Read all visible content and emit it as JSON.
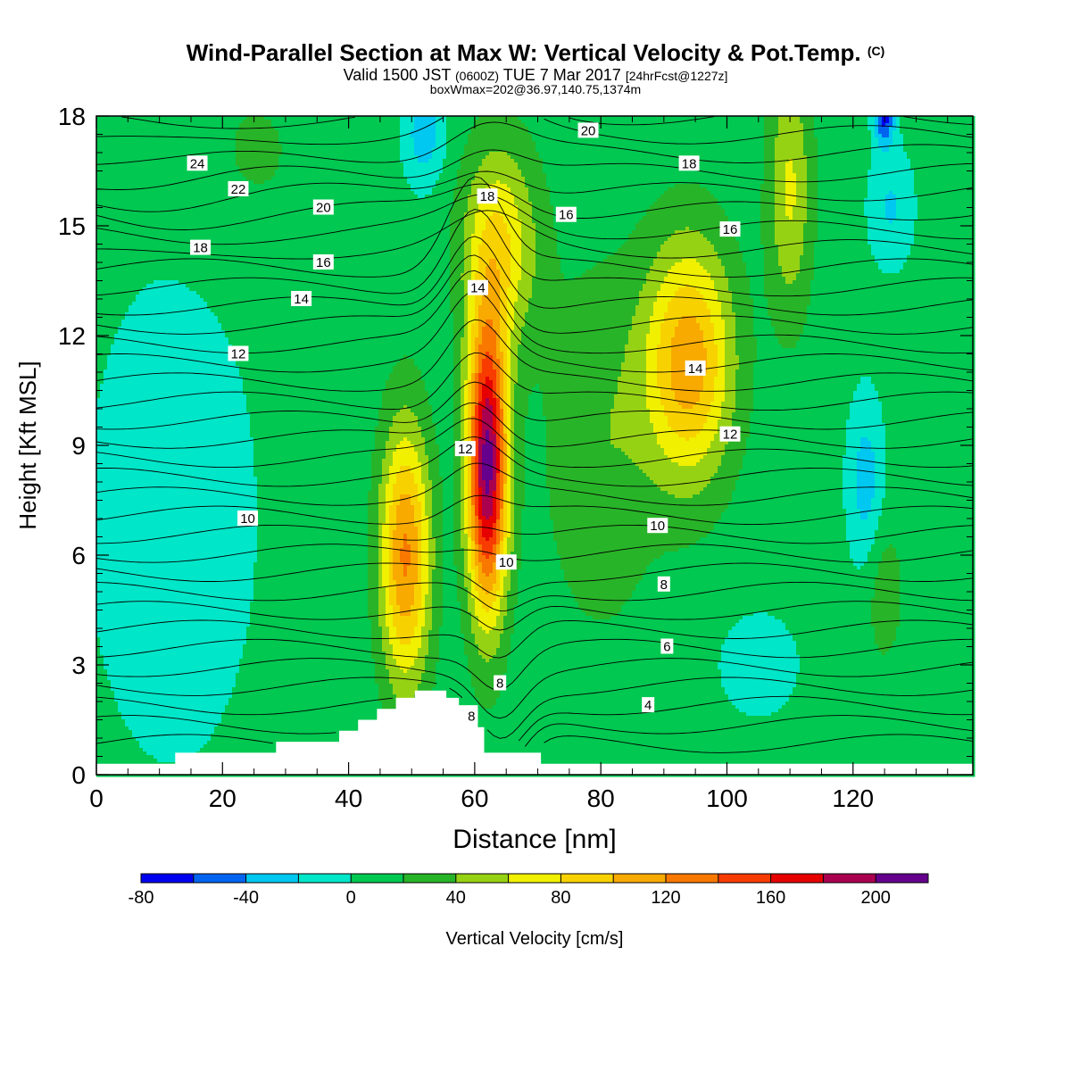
{
  "chart_data": {
    "type": "heatmap",
    "title_main": "Wind-Parallel Section at Max W: Vertical Velocity & Pot.Temp.",
    "title_mark": "(C)",
    "subtitle_a": "Valid 1500 JST",
    "subtitle_b": "(0600Z)",
    "subtitle_c": "TUE 7 Mar 2017",
    "subtitle_d": "[24hrFcst@1227z]",
    "box_line": "boxWmax=202@36.97,140.75,1374m",
    "xlabel": "Distance [nm]",
    "ylabel": "Height [Kft MSL]",
    "xlim": [
      0,
      139
    ],
    "ylim": [
      0,
      18
    ],
    "xticks": [
      0,
      20,
      40,
      60,
      80,
      100,
      120
    ],
    "yticks": [
      0,
      3,
      6,
      9,
      12,
      15,
      18
    ],
    "colorbar": {
      "label": "Vertical Velocity [cm/s]",
      "min": -80,
      "max": 220,
      "step": 20,
      "tick_values": [
        -80,
        -40,
        0,
        40,
        80,
        120,
        160,
        200
      ],
      "tick_labels": [
        "-80",
        "-40",
        "0",
        "40",
        "80",
        "120",
        "160",
        "200"
      ],
      "colors": [
        "#0000f0",
        "#0064f0",
        "#00c8f0",
        "#00e6c8",
        "#00c850",
        "#28b428",
        "#96d214",
        "#f0f000",
        "#f8d200",
        "#f8aa00",
        "#f87800",
        "#f83c00",
        "#e60000",
        "#aa0050",
        "#64008c"
      ]
    },
    "field_peaks": [
      {
        "x": 62,
        "y": 8.5,
        "w": 200
      },
      {
        "x": 48,
        "y": 6,
        "w": 110
      },
      {
        "x": 94,
        "y": 11,
        "w": 100
      },
      {
        "x": 122,
        "y": 8,
        "w": -30
      },
      {
        "x": 52,
        "y": 17,
        "w": -30
      },
      {
        "x": 125,
        "y": 17.5,
        "w": -60
      }
    ],
    "theta_labels": [
      {
        "text": "24",
        "x": 16,
        "y": 16.7
      },
      {
        "text": "22",
        "x": 22.5,
        "y": 16.0
      },
      {
        "text": "20",
        "x": 36,
        "y": 15.5
      },
      {
        "text": "20",
        "x": 78,
        "y": 17.6
      },
      {
        "text": "18",
        "x": 16.5,
        "y": 14.4
      },
      {
        "text": "18",
        "x": 62,
        "y": 15.8
      },
      {
        "text": "18",
        "x": 94,
        "y": 16.7
      },
      {
        "text": "16",
        "x": 36,
        "y": 14.0
      },
      {
        "text": "16",
        "x": 74.5,
        "y": 15.3
      },
      {
        "text": "16",
        "x": 100.5,
        "y": 14.9
      },
      {
        "text": "14",
        "x": 32.5,
        "y": 13.0
      },
      {
        "text": "14",
        "x": 60.5,
        "y": 13.3
      },
      {
        "text": "14",
        "x": 95,
        "y": 11.1
      },
      {
        "text": "12",
        "x": 22.5,
        "y": 11.5
      },
      {
        "text": "12",
        "x": 58.5,
        "y": 8.9
      },
      {
        "text": "12",
        "x": 100.5,
        "y": 9.3
      },
      {
        "text": "10",
        "x": 24,
        "y": 7.0
      },
      {
        "text": "10",
        "x": 65,
        "y": 5.8
      },
      {
        "text": "10",
        "x": 89,
        "y": 6.8
      },
      {
        "text": "8",
        "x": 90,
        "y": 5.2
      },
      {
        "text": "8",
        "x": 64,
        "y": 2.5
      },
      {
        "text": "8",
        "x": 59.5,
        "y": 1.6
      },
      {
        "text": "6",
        "x": 90.5,
        "y": 3.5
      },
      {
        "text": "4",
        "x": 87.5,
        "y": 1.9
      }
    ],
    "terrain_kft": [
      0.3,
      0.3,
      0.3,
      0.3,
      0.3,
      0.3,
      0.3,
      0.3,
      0.3,
      0.3,
      0.3,
      0.3,
      0.3,
      0.6,
      0.6,
      0.6,
      0.6,
      0.6,
      0.6,
      0.6,
      0.6,
      0.6,
      0.6,
      0.6,
      0.6,
      0.6,
      0.6,
      0.6,
      0.6,
      0.9,
      0.9,
      0.9,
      0.9,
      0.9,
      0.9,
      0.9,
      0.9,
      0.9,
      0.9,
      1.2,
      1.2,
      1.2,
      1.5,
      1.5,
      1.5,
      1.8,
      1.8,
      1.8,
      2.1,
      2.1,
      2.1,
      2.3,
      2.3,
      2.3,
      2.3,
      2.3,
      2.1,
      2.1,
      1.9,
      1.9,
      1.9,
      1.3,
      0.6,
      0.6,
      0.6,
      0.6,
      0.6,
      0.6,
      0.6,
      0.6,
      0.6,
      0.3,
      0.3
    ]
  }
}
